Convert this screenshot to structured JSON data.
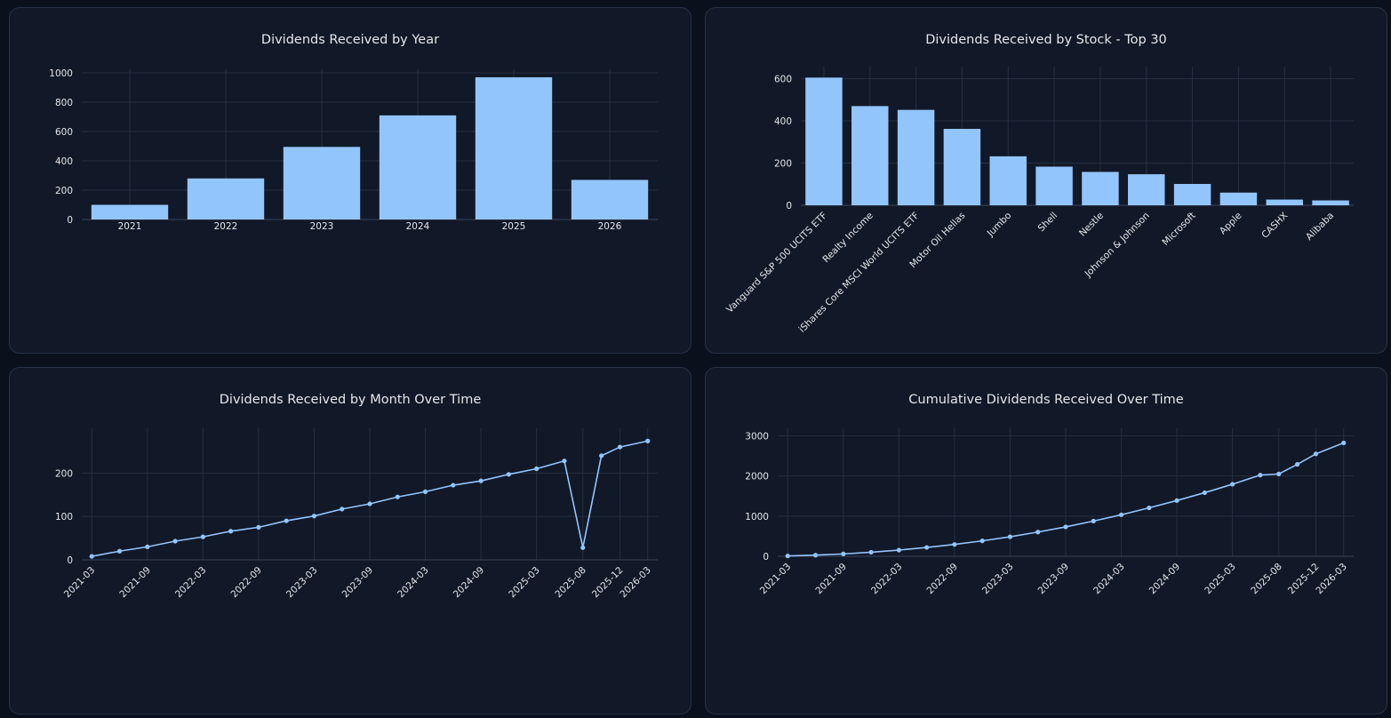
{
  "colors": {
    "background": "#0b111c",
    "panel": "#111827",
    "series": "#93c5fd",
    "grid": "#253043",
    "text": "#e5e7eb"
  },
  "chart_data": [
    {
      "type": "bar",
      "title": "Dividends Received by Year",
      "categories": [
        "2021",
        "2022",
        "2023",
        "2024",
        "2025",
        "2026"
      ],
      "values": [
        100,
        280,
        495,
        710,
        970,
        270
      ],
      "ylim": [
        0,
        1000
      ],
      "yticks": [
        0,
        200,
        400,
        600,
        800,
        1000
      ],
      "grid": true
    },
    {
      "type": "bar",
      "title": "Dividends Received by Stock - Top 30",
      "categories": [
        "Vanguard S&P 500 UCITS ETF",
        "Realty Income",
        "iShares Core MSCI World UCITS ETF",
        "Motor Oil Hellas",
        "Jumbo",
        "Shell",
        "Nestle",
        "Johnson & Johnson",
        "Microsoft",
        "Apple",
        "CASHX",
        "Alibaba"
      ],
      "values": [
        605,
        470,
        452,
        362,
        232,
        183,
        158,
        147,
        101,
        60,
        27,
        23
      ],
      "ylim": [
        0,
        640
      ],
      "yticks": [
        0,
        200,
        400,
        600
      ],
      "grid": true
    },
    {
      "type": "line",
      "title": "Dividends Received by Month Over Time",
      "x": [
        "2021-03",
        "2021-06",
        "2021-09",
        "2021-12",
        "2022-03",
        "2022-06",
        "2022-09",
        "2022-12",
        "2023-03",
        "2023-06",
        "2023-09",
        "2023-12",
        "2024-03",
        "2024-06",
        "2024-09",
        "2024-12",
        "2025-03",
        "2025-06",
        "2025-08",
        "2025-10",
        "2025-12",
        "2026-03"
      ],
      "y": [
        8,
        20,
        30,
        43,
        53,
        66,
        75,
        90,
        101,
        117,
        129,
        145,
        157,
        172,
        182,
        197,
        210,
        228,
        28,
        240,
        260,
        274
      ],
      "xticks": [
        "2021-03",
        "2021-09",
        "2022-03",
        "2022-09",
        "2023-03",
        "2023-09",
        "2024-03",
        "2024-09",
        "2025-03",
        "2025-08",
        "2025-12",
        "2026-03"
      ],
      "ylim": [
        0,
        295
      ],
      "yticks": [
        0,
        100,
        200
      ],
      "grid": true
    },
    {
      "type": "line",
      "title": "Cumulative Dividends Received Over Time",
      "x": [
        "2021-03",
        "2021-06",
        "2021-09",
        "2021-12",
        "2022-03",
        "2022-06",
        "2022-09",
        "2022-12",
        "2023-03",
        "2023-06",
        "2023-09",
        "2023-12",
        "2024-03",
        "2024-06",
        "2024-09",
        "2024-12",
        "2025-03",
        "2025-06",
        "2025-08",
        "2025-10",
        "2025-12",
        "2026-03"
      ],
      "y": [
        8,
        28,
        58,
        101,
        154,
        220,
        295,
        385,
        486,
        603,
        732,
        877,
        1034,
        1206,
        1388,
        1585,
        1795,
        2023,
        2051,
        2291,
        2551,
        2825
      ],
      "xticks": [
        "2021-03",
        "2021-09",
        "2022-03",
        "2022-09",
        "2023-03",
        "2023-09",
        "2024-03",
        "2024-09",
        "2025-03",
        "2025-08",
        "2025-12",
        "2026-03"
      ],
      "ylim": [
        0,
        3100
      ],
      "yticks": [
        0,
        1000,
        2000,
        3000
      ],
      "grid": true
    }
  ]
}
